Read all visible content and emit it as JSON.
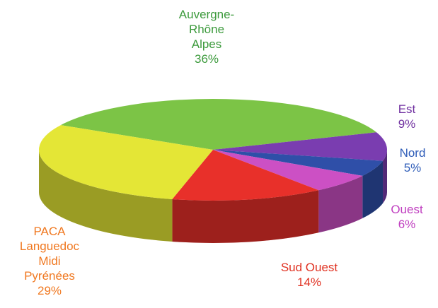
{
  "chart_data": {
    "type": "pie3d",
    "categories": [
      "Auvergne-\nRhône\nAlpes",
      "Est",
      "Nord",
      "Ouest",
      "Sud Ouest",
      "PACA\nLanguedoc\nMidi\nPyrénées"
    ],
    "values": [
      36,
      9,
      5,
      6,
      14,
      29
    ],
    "value_labels": [
      "36%",
      "9%",
      "5%",
      "6%",
      "14%",
      "29%"
    ],
    "colors": [
      "#7cc446",
      "#7a3db0",
      "#2f4fa8",
      "#cc50c4",
      "#e8302a",
      "#e4e636"
    ],
    "label_colors": [
      "#3c9a3c",
      "#7030a0",
      "#2e5cb8",
      "#c040c0",
      "#e03020",
      "#f07820"
    ]
  }
}
